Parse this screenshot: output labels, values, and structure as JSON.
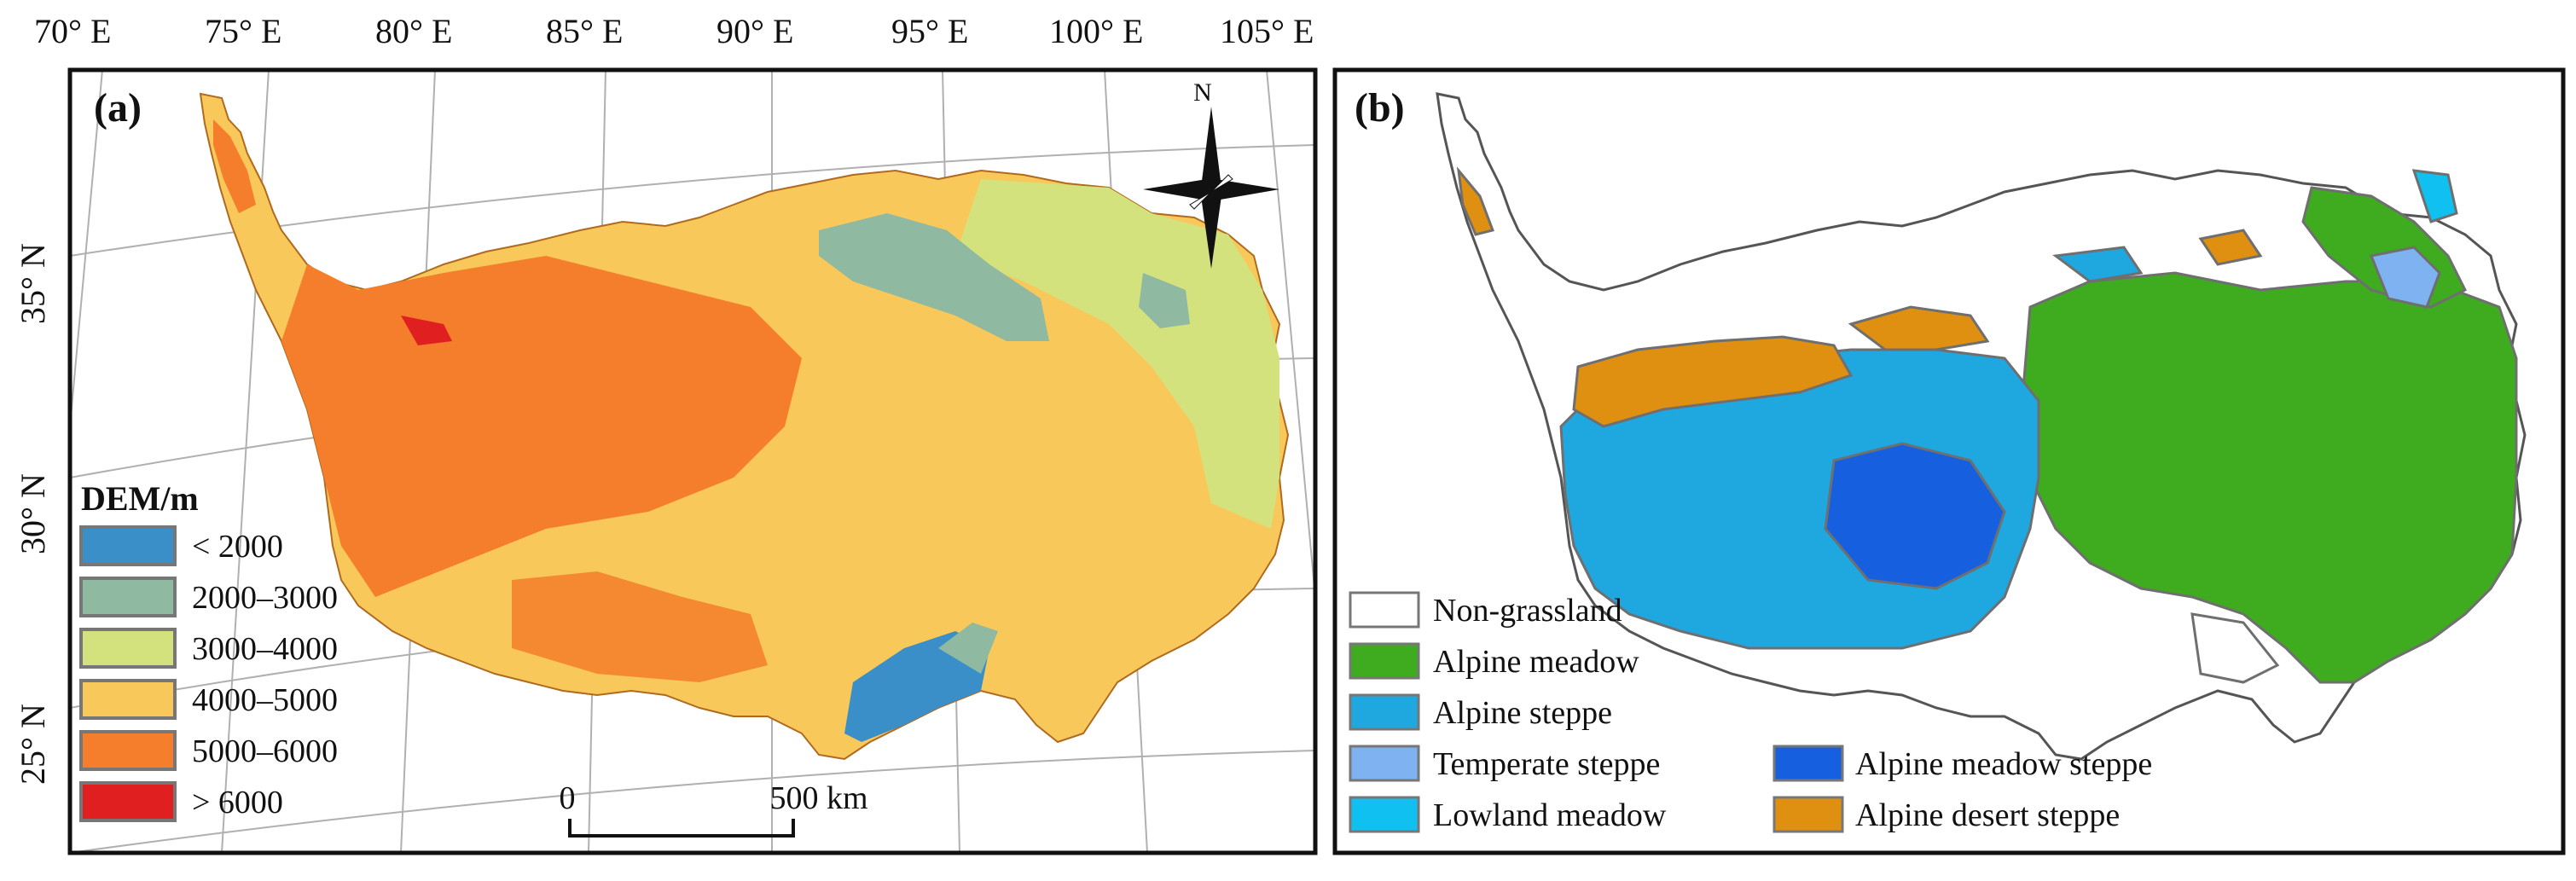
{
  "longitude_labels": [
    "70° E",
    "75° E",
    "80° E",
    "85° E",
    "90° E",
    "95° E",
    "100° E",
    "105° E"
  ],
  "latitude_labels": [
    "35° N",
    "30° N",
    "25° N"
  ],
  "panel_a": {
    "label": "(a)",
    "north_label": "N",
    "legend": {
      "title": "DEM/m",
      "items": [
        {
          "label": "< 2000",
          "color": "#3b8fc9"
        },
        {
          "label": "2000–3000",
          "color": "#8fb9a0"
        },
        {
          "label": "3000–4000",
          "color": "#d4e27e"
        },
        {
          "label": "4000–5000",
          "color": "#f8c95a"
        },
        {
          "label": "5000–6000",
          "color": "#f57e2c"
        },
        {
          "label": "> 6000",
          "color": "#e02020"
        }
      ]
    },
    "scale_bar": {
      "start": "0",
      "end": "500 km"
    }
  },
  "panel_b": {
    "label": "(b)",
    "legend": {
      "items": [
        {
          "label": "Non-grassland",
          "color": "#ffffff"
        },
        {
          "label": "Alpine meadow",
          "color": "#3fab1f"
        },
        {
          "label": "Alpine steppe",
          "color": "#1fa7e0"
        },
        {
          "label": "Temperate steppe",
          "color": "#7fb2f0"
        },
        {
          "label": "Lowland meadow",
          "color": "#10c0f0"
        },
        {
          "label": "Alpine meadow steppe",
          "color": "#1660e0"
        },
        {
          "label": "Alpine desert steppe",
          "color": "#e09010"
        }
      ]
    }
  }
}
